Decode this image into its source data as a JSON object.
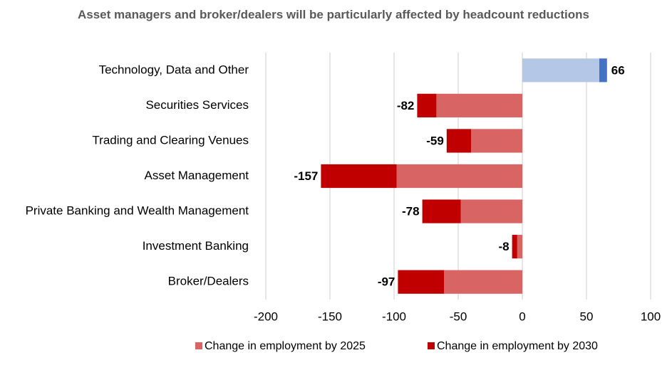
{
  "chart_data": {
    "type": "stacked-barh",
    "title": "Asset managers and broker/dealers will be particularly affected by headcount reductions",
    "categories": [
      "Technology, Data and Other",
      "Securities Services",
      "Trading and Clearing Venues",
      "Asset Management",
      "Private Banking and Wealth Management",
      "Investment Banking",
      "Broker/Dealers"
    ],
    "series": [
      {
        "name": "Change in employment by 2025",
        "color": "#d96464",
        "colors": [
          "#b4c7e7",
          "#d96464",
          "#d96464",
          "#d96464",
          "#d96464",
          "#d96464",
          "#d96464"
        ],
        "values": [
          60,
          -67,
          -40,
          -98,
          -48,
          -4,
          -61
        ]
      },
      {
        "name": "Change in employment by 2030",
        "color": "#c00000",
        "colors": [
          "#4472c4",
          "#c00000",
          "#c00000",
          "#c00000",
          "#c00000",
          "#c00000",
          "#c00000"
        ],
        "values": [
          6,
          -15,
          -19,
          -59,
          -30,
          -4,
          -36
        ]
      }
    ],
    "totals": [
      66,
      -82,
      -59,
      -157,
      -78,
      -8,
      -97
    ],
    "xlim": [
      -200,
      100
    ],
    "xticks": [
      -200,
      -150,
      -100,
      -50,
      0,
      50,
      100
    ],
    "grid": true
  }
}
